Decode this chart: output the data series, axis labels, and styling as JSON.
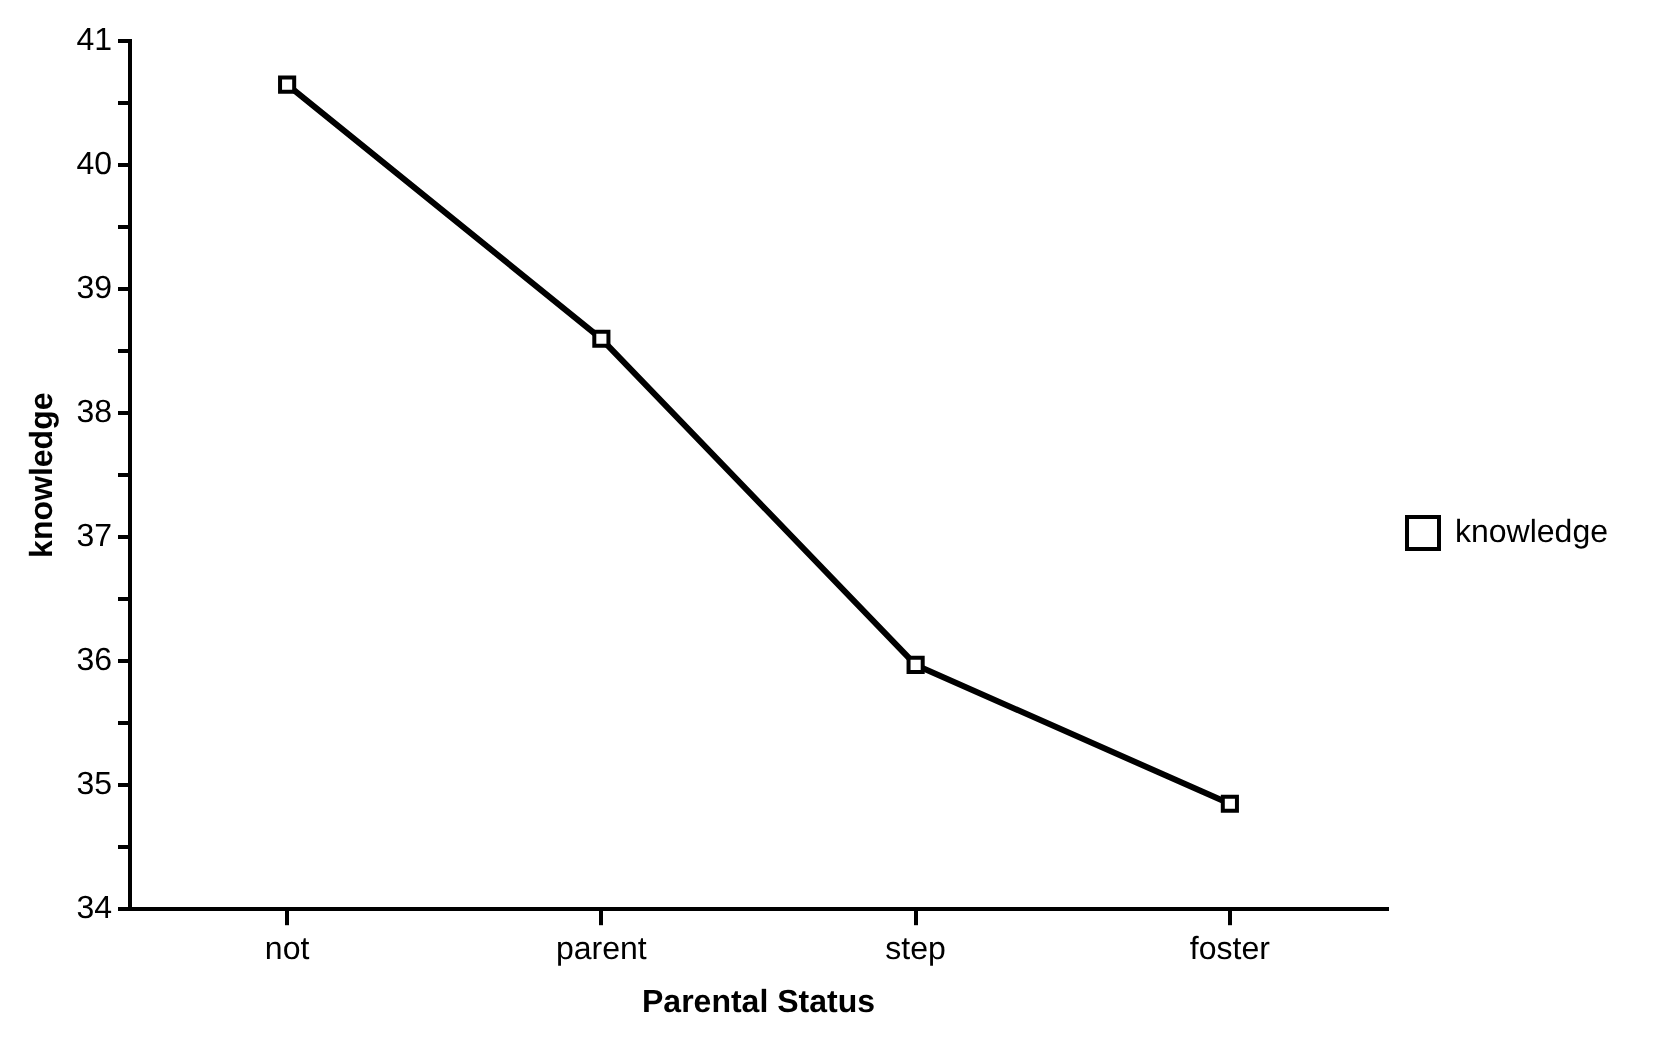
{
  "chart_data": {
    "type": "line",
    "xlabel": "Parental Status",
    "ylabel": "knowledge",
    "categories": [
      "not",
      "parent",
      "step",
      "foster"
    ],
    "series": [
      {
        "name": "knowledge",
        "color": "#000000",
        "values": [
          40.65,
          38.6,
          35.97,
          34.85
        ]
      }
    ],
    "ylim": [
      34,
      41
    ],
    "yticks": [
      34,
      {
        "value": 34.5,
        "label": null
      },
      35,
      {
        "value": 35.5,
        "label": null
      },
      36,
      {
        "value": 36.5,
        "label": null
      },
      37,
      {
        "value": 37.5,
        "label": null
      },
      38,
      {
        "value": 38.5,
        "label": null
      },
      39,
      {
        "value": 39.5,
        "label": null
      },
      40,
      {
        "value": 40.5,
        "label": null
      },
      41
    ],
    "grid": false,
    "legend": "right",
    "marker": "square",
    "line_style": "solid"
  }
}
